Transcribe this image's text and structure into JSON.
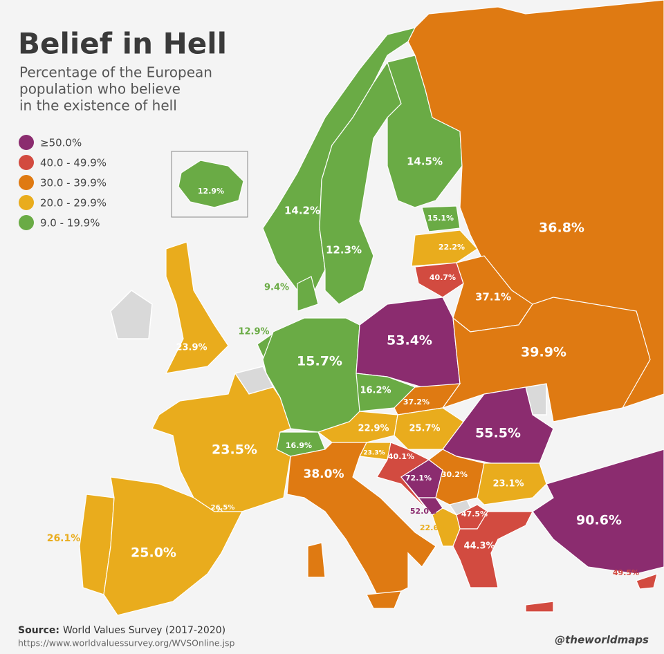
{
  "header": {
    "title": "Belief in Hell",
    "subtitle_lines": [
      "Percentage of the European",
      "population who believe",
      "in the existence of hell"
    ]
  },
  "legend": [
    {
      "label": "≥50.0%",
      "color": "#8b2c6f"
    },
    {
      "label": "40.0 - 49.9%",
      "color": "#d24b40"
    },
    {
      "label": "30.0 - 39.9%",
      "color": "#df7a12"
    },
    {
      "label": "20.0 - 29.9%",
      "color": "#e9ac1d"
    },
    {
      "label": "9.0 - 19.9%",
      "color": "#6aab45"
    }
  ],
  "regions": [
    {
      "label": "12.9%",
      "color": "#6aab45"
    },
    {
      "label": "14.2%",
      "color": "#6aab45"
    },
    {
      "label": "12.3%",
      "color": "#6aab45"
    },
    {
      "label": "14.5%",
      "color": "#6aab45"
    },
    {
      "label": "36.8%",
      "color": "#df7a12"
    },
    {
      "label": "15.1%",
      "color": "#6aab45"
    },
    {
      "label": "22.2%",
      "color": "#e9ac1d"
    },
    {
      "label": "40.7%",
      "color": "#d24b40"
    },
    {
      "label": "37.1%",
      "color": "#df7a12"
    },
    {
      "label": "9.4%",
      "color": "#6aab45"
    },
    {
      "label": "12.9%",
      "color": "#6aab45"
    },
    {
      "label": "23.9%",
      "color": "#e9ac1d"
    },
    {
      "label": "15.7%",
      "color": "#6aab45"
    },
    {
      "label": "53.4%",
      "color": "#8b2c6f"
    },
    {
      "label": "39.9%",
      "color": "#df7a12"
    },
    {
      "label": "16.2%",
      "color": "#6aab45"
    },
    {
      "label": "37.2%",
      "color": "#df7a12"
    },
    {
      "label": "22.9%",
      "color": "#e9ac1d"
    },
    {
      "label": "25.7%",
      "color": "#e9ac1d"
    },
    {
      "label": "55.5%",
      "color": "#8b2c6f"
    },
    {
      "label": "23.5%",
      "color": "#e9ac1d"
    },
    {
      "label": "16.9%",
      "color": "#6aab45"
    },
    {
      "label": "23.3%",
      "color": "#e9ac1d"
    },
    {
      "label": "40.1%",
      "color": "#d24b40"
    },
    {
      "label": "38.0%",
      "color": "#df7a12"
    },
    {
      "label": "72.1%",
      "color": "#8b2c6f"
    },
    {
      "label": "30.2%",
      "color": "#df7a12"
    },
    {
      "label": "23.1%",
      "color": "#e9ac1d"
    },
    {
      "label": "26.5%",
      "color": "#e9ac1d"
    },
    {
      "label": "52.0%",
      "color": "#8b2c6f"
    },
    {
      "label": "47.5%",
      "color": "#d24b40"
    },
    {
      "label": "22.6%",
      "color": "#e9ac1d"
    },
    {
      "label": "90.6%",
      "color": "#8b2c6f"
    },
    {
      "label": "26.1%",
      "color": "#e9ac1d"
    },
    {
      "label": "25.0%",
      "color": "#e9ac1d"
    },
    {
      "label": "44.3%",
      "color": "#d24b40"
    },
    {
      "label": "49.5%",
      "color": "#d24b40"
    }
  ],
  "footer": {
    "source_label": "Source:",
    "source_text": "World Values Survey (2017-2020)",
    "url": "https://www.worldvaluessurvey.org/WVSOnline.jsp",
    "credit": "@theworldmaps"
  }
}
